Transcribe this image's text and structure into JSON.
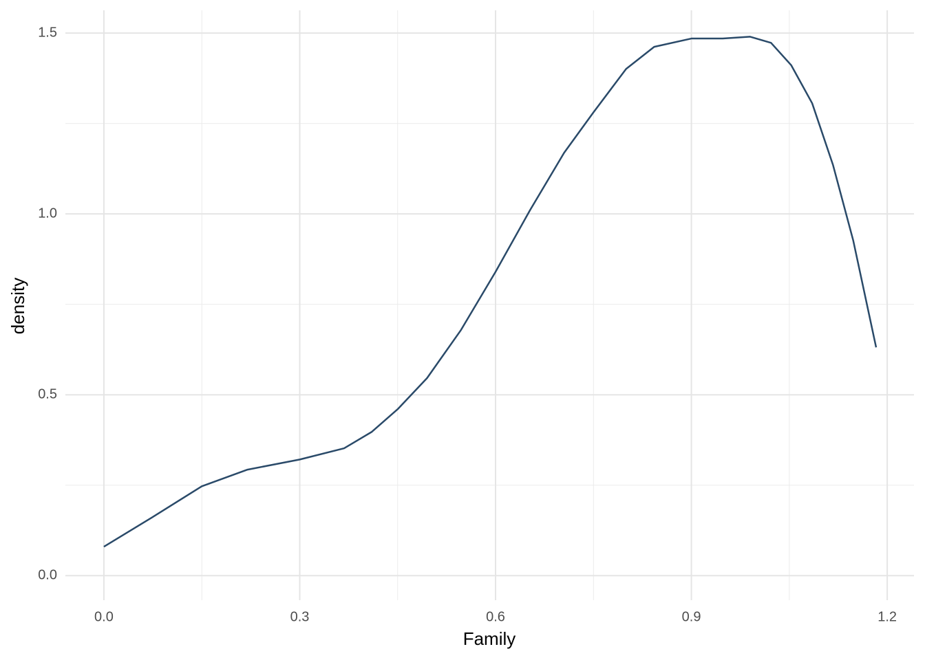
{
  "chart_data": {
    "type": "line",
    "x_label": "Family",
    "y_label": "density",
    "series": [
      {
        "color": "#2a4a69",
        "x": [
          0,
          0.073,
          0.15,
          0.22,
          0.3,
          0.368,
          0.41,
          0.45,
          0.495,
          0.547,
          0.6,
          0.653,
          0.705,
          0.75,
          0.8,
          0.843,
          0.9,
          0.948,
          0.99,
          1.022,
          1.053,
          1.085,
          1.117,
          1.148,
          1.183
        ],
        "values": [
          0.08,
          0.16,
          0.247,
          0.293,
          0.321,
          0.352,
          0.397,
          0.46,
          0.546,
          0.679,
          0.84,
          1.011,
          1.169,
          1.281,
          1.401,
          1.462,
          1.485,
          1.485,
          1.49,
          1.473,
          1.411,
          1.306,
          1.135,
          0.926,
          0.631
        ]
      }
    ],
    "xlim": [
      -0.059,
      1.241
    ],
    "ylim": [
      -0.068,
      1.563
    ],
    "xticks": [
      {
        "value": 0,
        "label": "0.0"
      },
      0.3,
      0.6,
      0.9,
      1.2
    ],
    "yticks": [
      {
        "value": 0,
        "label": "0.0"
      },
      0.5,
      {
        "value": 1,
        "label": "1.0"
      },
      1.5
    ],
    "xminorticks": [
      0.15,
      0.45,
      0.75,
      1.05
    ],
    "yminorticks": [
      0.25,
      0.75,
      1.25
    ],
    "grid": true
  }
}
